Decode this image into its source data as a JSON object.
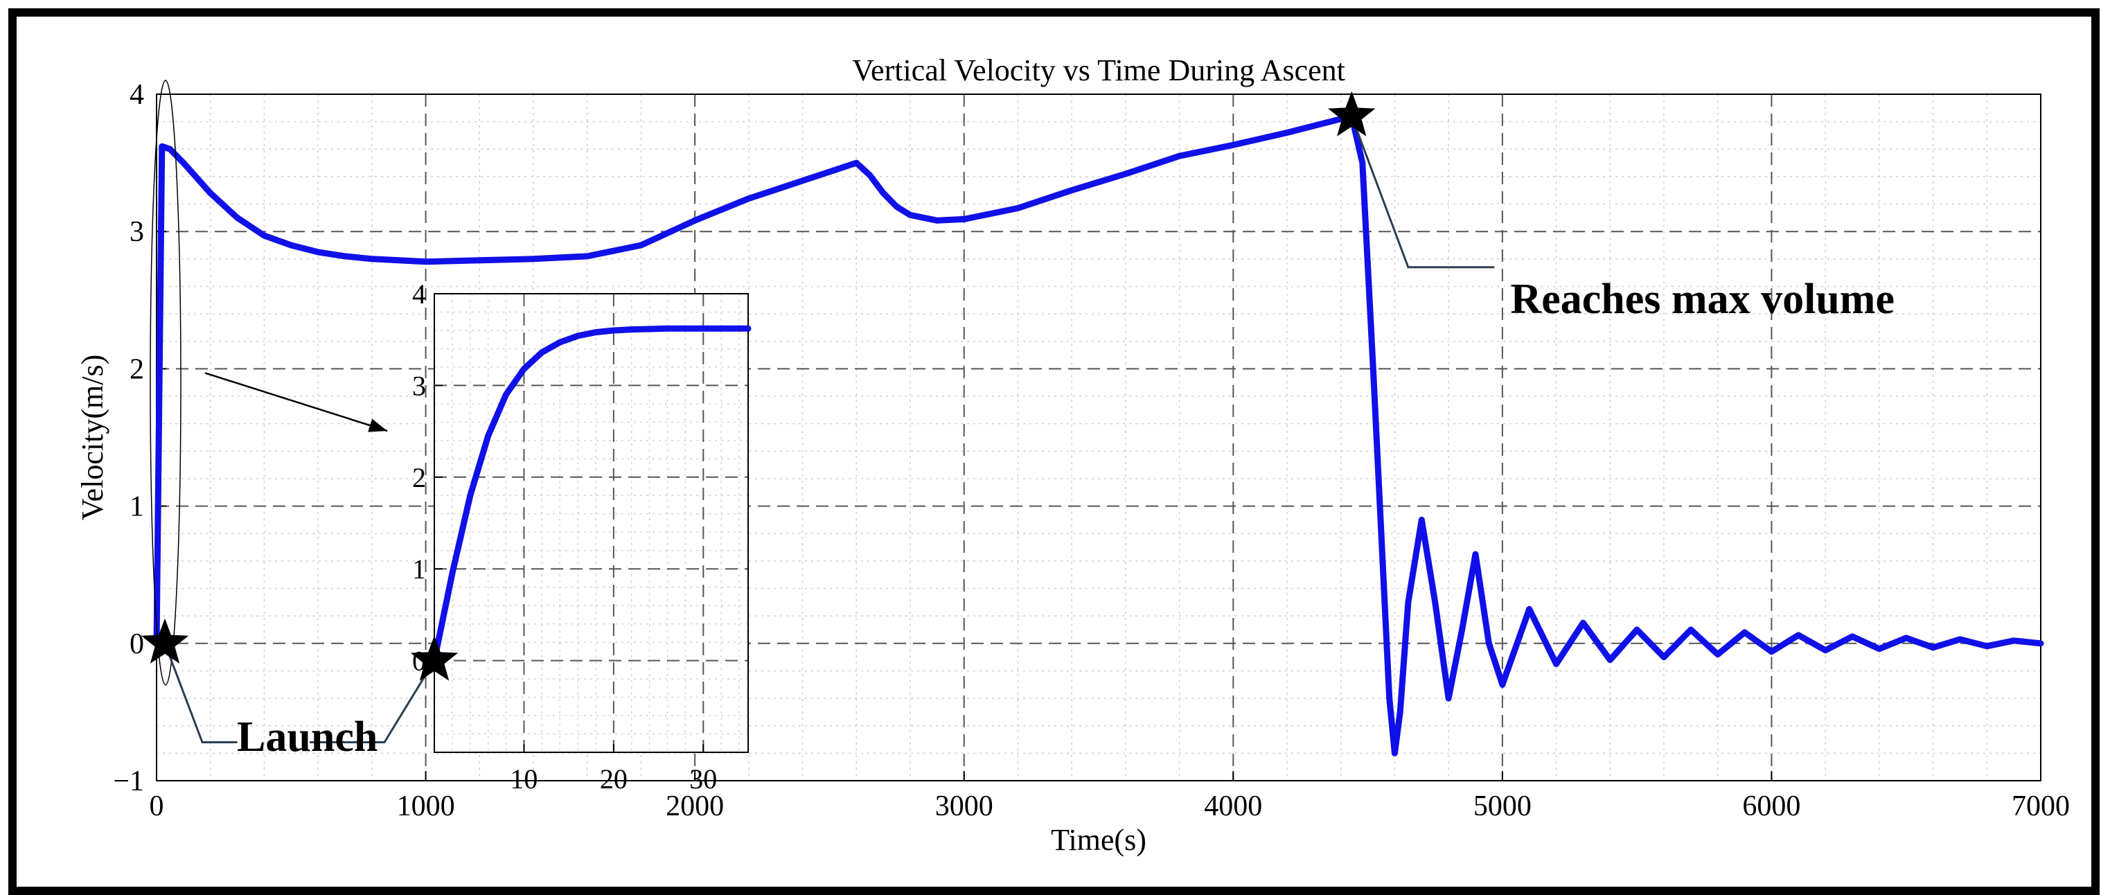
{
  "chart_data": {
    "type": "line",
    "title": "Vertical Velocity vs Time During Ascent",
    "xlabel": "Time(s)",
    "ylabel": "Velocity(m/s)",
    "xlim": [
      0,
      7000
    ],
    "ylim": [
      -1,
      4
    ],
    "x_ticks": [
      "0",
      "1000",
      "2000",
      "3000",
      "4000",
      "5000",
      "6000",
      "7000"
    ],
    "y_ticks": [
      "-1",
      "0",
      "1",
      "2",
      "3",
      "4"
    ],
    "grid": true,
    "line_color": "#1010e8",
    "series": [
      {
        "name": "velocity",
        "x": [
          0,
          20,
          50,
          100,
          200,
          300,
          400,
          500,
          600,
          700,
          800,
          900,
          1000,
          1200,
          1400,
          1600,
          1800,
          2000,
          2200,
          2400,
          2600,
          2650,
          2700,
          2750,
          2800,
          2900,
          3000,
          3200,
          3400,
          3600,
          3800,
          4000,
          4200,
          4400,
          4440,
          4480,
          4520,
          4560,
          4580,
          4600,
          4620,
          4650,
          4700,
          4750,
          4800,
          4850,
          4900,
          4950,
          5000,
          5100,
          5200,
          5300,
          5400,
          5500,
          5600,
          5700,
          5800,
          5900,
          6000,
          6100,
          6200,
          6300,
          6400,
          6500,
          6600,
          6700,
          6800,
          6900,
          7000
        ],
        "y": [
          0,
          3.62,
          3.6,
          3.5,
          3.28,
          3.1,
          2.97,
          2.9,
          2.85,
          2.82,
          2.8,
          2.79,
          2.78,
          2.79,
          2.8,
          2.82,
          2.9,
          3.08,
          3.24,
          3.37,
          3.5,
          3.41,
          3.28,
          3.18,
          3.12,
          3.08,
          3.09,
          3.17,
          3.3,
          3.42,
          3.55,
          3.63,
          3.72,
          3.82,
          3.84,
          3.5,
          2.0,
          0.4,
          -0.4,
          -0.8,
          -0.5,
          0.3,
          0.9,
          0.3,
          -0.4,
          0.1,
          0.65,
          0.0,
          -0.3,
          0.25,
          -0.15,
          0.15,
          -0.12,
          0.1,
          -0.1,
          0.1,
          -0.08,
          0.08,
          -0.06,
          0.06,
          -0.05,
          0.05,
          -0.04,
          0.04,
          -0.03,
          0.03,
          -0.02,
          0.02,
          0.0
        ]
      }
    ],
    "markers": [
      {
        "label": "Launch",
        "x": 0,
        "y": 0
      },
      {
        "label": "Reaches max volume",
        "x": 4440,
        "y": 3.84
      }
    ],
    "inset": {
      "xlim": [
        0,
        35
      ],
      "ylim": [
        -1,
        4
      ],
      "x_ticks": [
        "10",
        "20",
        "30"
      ],
      "y_ticks": [
        "0",
        "1",
        "2",
        "3",
        "4"
      ],
      "x": [
        0,
        2,
        4,
        6,
        8,
        10,
        12,
        14,
        16,
        18,
        20,
        22,
        24,
        26,
        28,
        30,
        32,
        35
      ],
      "y": [
        0,
        0.95,
        1.8,
        2.45,
        2.9,
        3.18,
        3.36,
        3.47,
        3.54,
        3.58,
        3.6,
        3.61,
        3.615,
        3.62,
        3.62,
        3.62,
        3.62,
        3.62
      ]
    }
  }
}
